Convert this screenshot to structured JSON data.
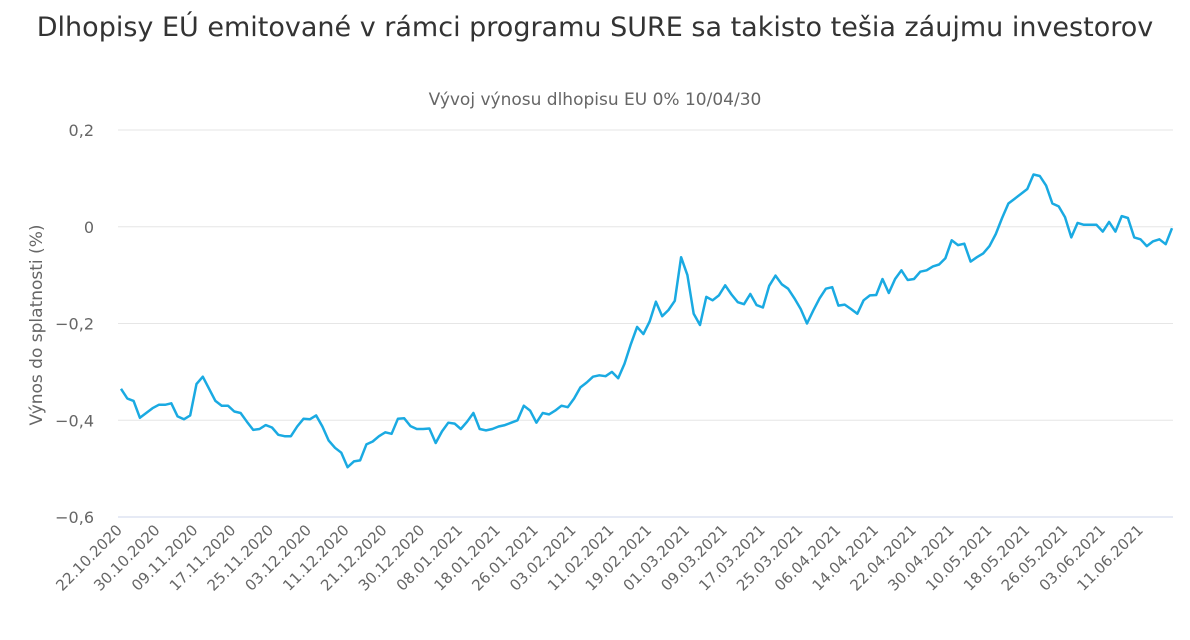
{
  "chart_data": {
    "type": "line",
    "title": "Dlhopisy EÚ emitované v rámci programu SURE sa takisto tešia záujmu investorov",
    "subtitle": "Vývoj výnosu dlhopisu EU 0% 10/04/30",
    "xlabel": "",
    "ylabel": "Výnos do splatnosti (%)",
    "ylim": [
      -0.6,
      0.2
    ],
    "y_ticks": [
      "0,2",
      "0",
      "−0,2",
      "−0,4",
      "−0,6"
    ],
    "grid": true,
    "x_tick_labels": [
      "22.10.2020",
      "30.10.2020",
      "09.11.2020",
      "17.11.2020",
      "25.11.2020",
      "03.12.2020",
      "11.12.2020",
      "21.12.2020",
      "30.12.2020",
      "08.01.2021",
      "18.01.2021",
      "26.01.2021",
      "03.02.2021",
      "11.02.2021",
      "19.02.2021",
      "01.03.2021",
      "09.03.2021",
      "17.03.2021",
      "25.03.2021",
      "06.04.2021",
      "14.04.2021",
      "22.04.2021",
      "30.04.2021",
      "10.05.2021",
      "18.05.2021",
      "26.05.2021",
      "03.06.2021",
      "11.06.2021"
    ],
    "series": [
      {
        "color": "#1aaae2",
        "values": [
          -0.335,
          -0.355,
          -0.36,
          -0.395,
          -0.385,
          -0.375,
          -0.368,
          -0.368,
          -0.365,
          -0.392,
          -0.398,
          -0.39,
          -0.325,
          -0.31,
          -0.335,
          -0.36,
          -0.37,
          -0.37,
          -0.382,
          -0.385,
          -0.403,
          -0.42,
          -0.418,
          -0.41,
          -0.415,
          -0.43,
          -0.433,
          -0.433,
          -0.413,
          -0.397,
          -0.398,
          -0.39,
          -0.413,
          -0.442,
          -0.457,
          -0.467,
          -0.497,
          -0.485,
          -0.483,
          -0.45,
          -0.444,
          -0.433,
          -0.425,
          -0.428,
          -0.397,
          -0.396,
          -0.412,
          -0.418,
          -0.418,
          -0.417,
          -0.447,
          -0.423,
          -0.405,
          -0.407,
          -0.418,
          -0.403,
          -0.385,
          -0.418,
          -0.421,
          -0.418,
          -0.413,
          -0.41,
          -0.405,
          -0.4,
          -0.37,
          -0.38,
          -0.405,
          -0.385,
          -0.388,
          -0.38,
          -0.37,
          -0.373,
          -0.355,
          -0.332,
          -0.322,
          -0.31,
          -0.307,
          -0.309,
          -0.3,
          -0.313,
          -0.283,
          -0.243,
          -0.207,
          -0.222,
          -0.196,
          -0.155,
          -0.185,
          -0.172,
          -0.153,
          -0.063,
          -0.1,
          -0.18,
          -0.203,
          -0.145,
          -0.152,
          -0.142,
          -0.121,
          -0.14,
          -0.156,
          -0.16,
          -0.139,
          -0.162,
          -0.167,
          -0.122,
          -0.101,
          -0.119,
          -0.128,
          -0.148,
          -0.17,
          -0.2,
          -0.173,
          -0.148,
          -0.128,
          -0.125,
          -0.163,
          -0.161,
          -0.17,
          -0.18,
          -0.152,
          -0.142,
          -0.141,
          -0.108,
          -0.137,
          -0.108,
          -0.09,
          -0.11,
          -0.108,
          -0.093,
          -0.09,
          -0.082,
          -0.078,
          -0.065,
          -0.028,
          -0.038,
          -0.035,
          -0.072,
          -0.063,
          -0.055,
          -0.04,
          -0.015,
          0.018,
          0.048,
          0.058,
          0.068,
          0.078,
          0.108,
          0.105,
          0.085,
          0.048,
          0.042,
          0.02,
          -0.022,
          0.008,
          0.004,
          0.004,
          0.004,
          -0.01,
          0.01,
          -0.01,
          0.022,
          0.018,
          -0.022,
          -0.026,
          -0.04,
          -0.03,
          -0.026,
          -0.036,
          -0.003
        ]
      }
    ]
  }
}
